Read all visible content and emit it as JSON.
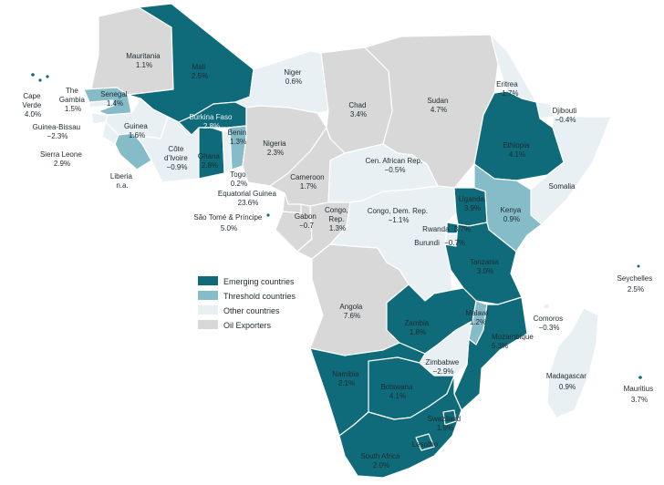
{
  "colors": {
    "emerging": "#0f6b7a",
    "threshold": "#86bcc8",
    "other": "#e8f0f4",
    "oil": "#d8d8d8",
    "border": "#ffffff",
    "text_dark": "#1e2a30",
    "text_light": "#e9f3f5"
  },
  "legend": [
    {
      "key": "emerging",
      "label": "Emerging countries"
    },
    {
      "key": "threshold",
      "label": "Threshold countries"
    },
    {
      "key": "other",
      "label": "Other countries"
    },
    {
      "key": "oil",
      "label": "Oil Exporters"
    }
  ],
  "countries": [
    {
      "id": "mauritania",
      "category": "oil",
      "name": "Mauritania",
      "value": "1.1%"
    },
    {
      "id": "mali",
      "category": "emerging",
      "name": "Mali",
      "value": "2.5%"
    },
    {
      "id": "niger",
      "category": "other",
      "name": "Niger",
      "value": "0.6%"
    },
    {
      "id": "chad",
      "category": "oil",
      "name": "Chad",
      "value": "3.4%"
    },
    {
      "id": "sudan",
      "category": "oil",
      "name": "Sudan",
      "value": "4.7%"
    },
    {
      "id": "eritrea",
      "category": "other",
      "name": "Eritrea",
      "value": "−1.7%"
    },
    {
      "id": "djibouti",
      "category": "other",
      "name": "Djibouti",
      "value": "−0.4%"
    },
    {
      "id": "ethiopia",
      "category": "emerging",
      "name": "Ethiopia",
      "value": "4.1%"
    },
    {
      "id": "somalia",
      "category": "other",
      "name": "Somalia",
      "value": ""
    },
    {
      "id": "cape-verde",
      "category": "emerging",
      "name": "Cape Verde",
      "value": "4.0%"
    },
    {
      "id": "gambia",
      "category": "other",
      "name": "The Gambia",
      "value": "1.5%"
    },
    {
      "id": "senegal",
      "category": "threshold",
      "name": "Senegal",
      "value": "1.4%"
    },
    {
      "id": "guinea-bissau",
      "category": "other",
      "name": "Guinea-Bissau",
      "value": "−2.3%"
    },
    {
      "id": "guinea",
      "category": "other",
      "name": "Guinea",
      "value": "1.6%"
    },
    {
      "id": "sierra-leone",
      "category": "other",
      "name": "Sierra Leone",
      "value": "2.9%"
    },
    {
      "id": "liberia",
      "category": "threshold",
      "name": "Liberia",
      "value": "n.a."
    },
    {
      "id": "cote-divoire",
      "category": "other",
      "name": "Côte d’Ivoire",
      "value": "−0.9%"
    },
    {
      "id": "burkina-faso",
      "category": "emerging",
      "name": "Burkina Faso",
      "value": "2.8%"
    },
    {
      "id": "ghana",
      "category": "emerging",
      "name": "Ghana",
      "value": "2.8%"
    },
    {
      "id": "togo",
      "category": "other",
      "name": "Togo",
      "value": "0.2%"
    },
    {
      "id": "benin",
      "category": "threshold",
      "name": "Benin",
      "value": "1.3%"
    },
    {
      "id": "nigeria",
      "category": "oil",
      "name": "Nigeria",
      "value": "2.3%"
    },
    {
      "id": "cameroon",
      "category": "oil",
      "name": "Cameroon",
      "value": "1.7%"
    },
    {
      "id": "car",
      "category": "other",
      "name": "Cen. African Rep.",
      "value": "−0.5%"
    },
    {
      "id": "equatorial-guinea",
      "category": "oil",
      "name": "Equatorial Guinea",
      "value": "23.6%"
    },
    {
      "id": "sao-tome",
      "category": "other",
      "name": "São Tomé & Príncipe",
      "value": "5.0%"
    },
    {
      "id": "gabon",
      "category": "oil",
      "name": "Gabon",
      "value": "−0.7"
    },
    {
      "id": "congo-rep",
      "category": "oil",
      "name": "Congo, Rep.",
      "value": "1.3%"
    },
    {
      "id": "congo-dem",
      "category": "other",
      "name": "Congo, Dem. Rep.",
      "value": "−1.1%"
    },
    {
      "id": "uganda",
      "category": "emerging",
      "name": "Uganda",
      "value": "3.9%"
    },
    {
      "id": "kenya",
      "category": "threshold",
      "name": "Kenya",
      "value": "0.9%"
    },
    {
      "id": "rwanda",
      "category": "emerging",
      "name": "Rwanda",
      "value": "3.7%"
    },
    {
      "id": "burundi",
      "category": "other",
      "name": "Burundi",
      "value": "−0.7%"
    },
    {
      "id": "tanzania",
      "category": "emerging",
      "name": "Tanzania",
      "value": "3.0%"
    },
    {
      "id": "angola",
      "category": "oil",
      "name": "Angola",
      "value": "7.6%"
    },
    {
      "id": "zambia",
      "category": "emerging",
      "name": "Zambia",
      "value": "1.8%"
    },
    {
      "id": "malawi",
      "category": "threshold",
      "name": "Malawi",
      "value": "1.2%"
    },
    {
      "id": "mozambique",
      "category": "emerging",
      "name": "Mozambique",
      "value": "5.3%"
    },
    {
      "id": "comoros",
      "category": "other",
      "name": "Comoros",
      "value": "−0.3%"
    },
    {
      "id": "madagascar",
      "category": "other",
      "name": "Madagascar",
      "value": "0.9%"
    },
    {
      "id": "zimbabwe",
      "category": "other",
      "name": "Zimbabwe",
      "value": "−2.9%"
    },
    {
      "id": "namibia",
      "category": "emerging",
      "name": "Namibia",
      "value": "2.1%"
    },
    {
      "id": "botswana",
      "category": "emerging",
      "name": "Botswana",
      "value": "4.1%"
    },
    {
      "id": "swaziland",
      "category": "emerging",
      "name": "Swaziland",
      "value": "1.9%"
    },
    {
      "id": "lesotho",
      "category": "emerging",
      "name": "Lesotho",
      "value": ""
    },
    {
      "id": "south-africa",
      "category": "emerging",
      "name": "South Africa",
      "value": "2.0%"
    },
    {
      "id": "seychelles",
      "category": "emerging",
      "name": "Seychelles",
      "value": "2.5%"
    },
    {
      "id": "mauritius",
      "category": "emerging",
      "name": "Mauritius",
      "value": "3.7%"
    }
  ]
}
